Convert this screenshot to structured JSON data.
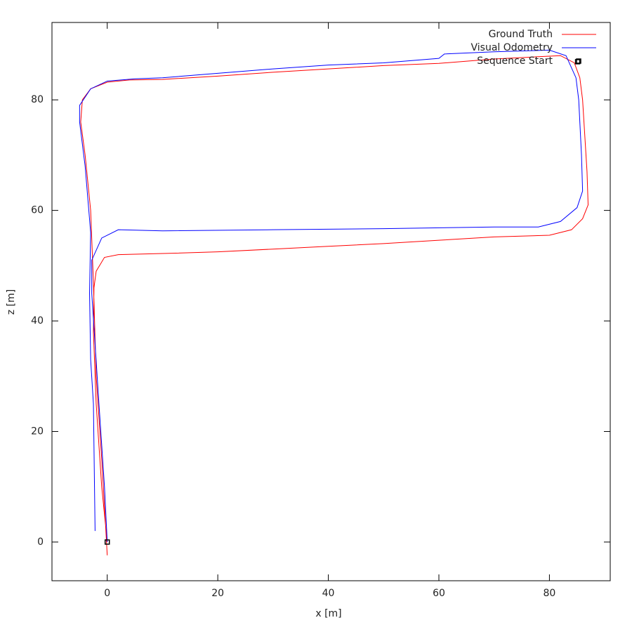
{
  "chart_data": {
    "type": "line",
    "x_label": "x [m]",
    "y_label": "z [m]",
    "xlim": [
      -10,
      91
    ],
    "ylim": [
      -7,
      94
    ],
    "xticks": [
      0,
      20,
      40,
      60,
      80
    ],
    "yticks": [
      0,
      20,
      40,
      60,
      80
    ],
    "legend": "top-right",
    "series": [
      {
        "name": "Ground Truth",
        "color": "#ff0000",
        "style": "line",
        "x": [
          0,
          -1,
          -2,
          -2.5,
          -2.4,
          -2,
          -0.5,
          2,
          10,
          20,
          30,
          40,
          50,
          60,
          70,
          80,
          84,
          86,
          87,
          86.8,
          86,
          85.5,
          84.5,
          82,
          78,
          70,
          60,
          50,
          40,
          30,
          20,
          10,
          4,
          0,
          -3,
          -4.5,
          -4.8,
          -4,
          -3,
          -2.5,
          -2,
          -1,
          -0.3,
          0
        ],
        "values": [
          0,
          10,
          25,
          38,
          46,
          49,
          51.5,
          52,
          52.2,
          52.5,
          53,
          53.5,
          54,
          54.6,
          55.2,
          55.5,
          56.5,
          58.5,
          61,
          67,
          80,
          84,
          86.7,
          88,
          87.8,
          87.4,
          86.6,
          86.2,
          85.6,
          85,
          84.3,
          83.7,
          83.6,
          83.2,
          82,
          80,
          76,
          70,
          60,
          47,
          30,
          15,
          3,
          -2.4
        ]
      },
      {
        "name": "Visual Odometry",
        "color": "#0000ff",
        "style": "line",
        "x": [
          0,
          -0.5,
          -1.5,
          -2.8,
          -2.8,
          -1,
          2,
          10,
          30,
          50,
          70,
          78,
          82,
          85,
          86,
          85.8,
          85.3,
          84.8,
          83,
          80,
          70,
          61,
          60,
          50,
          40,
          30,
          20,
          10,
          5,
          0,
          -3,
          -5,
          -5,
          -4,
          -3,
          -3.2,
          -3,
          -2.5,
          -2.2
        ],
        "values": [
          0,
          10,
          25,
          45,
          51,
          55,
          56.5,
          56.3,
          56.5,
          56.7,
          57,
          57,
          58,
          60.5,
          63.5,
          70,
          80,
          84,
          88,
          89,
          88.7,
          88.3,
          87.5,
          86.7,
          86.3,
          85.6,
          84.8,
          84,
          83.8,
          83.4,
          82,
          79,
          76,
          68,
          56,
          45,
          33,
          25,
          2
        ]
      },
      {
        "name": "Sequence Start",
        "color": "#000000",
        "style": "points",
        "x": [
          0,
          85.1
        ],
        "values": [
          0,
          86.9
        ]
      }
    ]
  }
}
